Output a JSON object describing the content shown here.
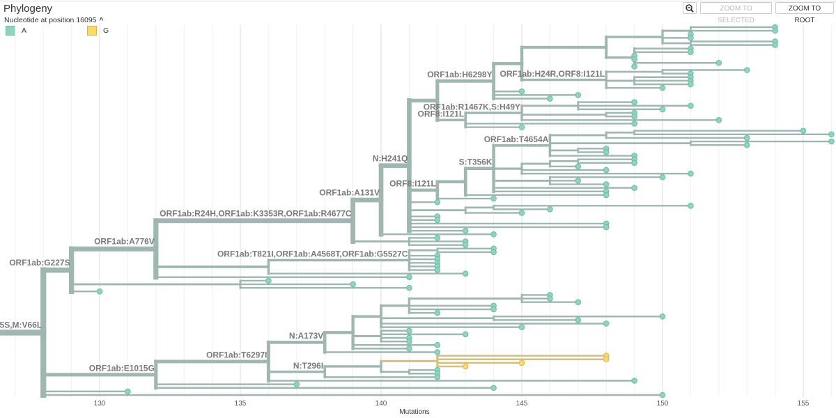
{
  "header": {
    "title": "Phylogeny",
    "color_by": "Nucleotide at position 16095",
    "zoom_icon": "magnifier-minus-icon",
    "zoom_to_selected": "ZOOM TO SELECTED",
    "zoom_to_root": "ZOOM TO ROOT"
  },
  "legend": [
    {
      "label": "A",
      "color": "#8fd3c1",
      "border": "#6fb9a7"
    },
    {
      "label": "G",
      "color": "#fcd96b",
      "border": "#d7b44a"
    }
  ],
  "colors": {
    "A_branch": "#9fb7b0",
    "G_branch": "#d3bf83",
    "A_tip": "#8fd3c1",
    "A_tip_stroke": "#6fb9a7",
    "G_tip": "#fcd96b",
    "G_tip_stroke": "#d7b44a"
  },
  "chart_data": {
    "type": "phylogeny",
    "xlabel": "Mutations",
    "xlim": [
      126.5,
      156.2
    ],
    "ticks": [
      130,
      135,
      140,
      145,
      150,
      155
    ],
    "tree": {
      "d": 128,
      "l": "5S,M:V66L",
      "c": [
        {
          "d": 129,
          "l": "ORF1ab:G227S",
          "c": [
            {
              "d": 132,
              "l": "ORF1ab:A776V",
              "c": [
                {
                  "d": 139,
                  "l": "ORF1ab:R24H,ORF1ab:K3353R,ORF1ab:R4677C",
                  "c": [
                    {
                      "d": 140,
                      "l": "ORF1ab:A131V",
                      "c": [
                        {
                          "d": 141,
                          "l": "N:H241Q",
                          "c": [
                            {
                              "d": 142,
                              "c": [
                                {
                                  "d": 144,
                                  "l": "ORF1ab:H6298Y",
                                  "c": [
                                    {
                                      "d": 145,
                                      "c": [
                                        {
                                          "d": 148,
                                          "c": [
                                            {
                                              "d": 150,
                                              "c": [
                                                {
                                                  "d": 151,
                                                  "c": [
                                                    154,
                                                    154,
                                                    151
                                                  ]
                                                },
                                                151,
                                                {
                                                  "d": 151,
                                                  "c": [
                                                    154,
                                                    154
                                                  ]
                                                }
                                              ]
                                            },
                                            {
                                              "d": 149,
                                              "c": [
                                                151,
                                                151,
                                                149,
                                                149,
                                                152,
                                                149
                                              ]
                                            }
                                          ]
                                        },
                                        {
                                          "d": 148,
                                          "l": "ORF1ab:H24R,ORF8:I121L",
                                          "c": [
                                            {
                                              "d": 150,
                                              "c": [
                                                153,
                                                151
                                              ]
                                            },
                                            {
                                              "d": 149,
                                              "c": [
                                                151,
                                                151,
                                                151
                                              ]
                                            },
                                            150
                                          ]
                                        }
                                      ]
                                    },
                                    145,
                                    147,
                                    146
                                  ]
                                },
                                {
                                  "d": 143,
                                  "l": "ORF8:I121L",
                                  "c": [
                                    {
                                      "d": 145,
                                      "l": "ORF1ab:R1467K,S:H49Y",
                                      "c": [
                                        {
                                          "d": 147,
                                          "c": [
                                            149,
                                            151,
                                            150
                                          ]
                                        },
                                        {
                                          "d": 148,
                                          "c": [
                                            149,
                                            149
                                          ]
                                        },
                                        152
                                      ]
                                    },
                                    149,
                                    145
                                  ]
                                }
                              ]
                            },
                            {
                              "d": 142,
                              "l": "ORF8:I121L",
                              "c": [
                                {
                                  "d": 143,
                                  "c": [
                                    {
                                      "d": 144,
                                      "l": "S:T356K",
                                      "c": [
                                        {
                                          "d": 146,
                                          "l": "ORF1ab:T4654A",
                                          "c": [
                                            {
                                              "d": 148,
                                              "c": [
                                                {
                                                  "d": 149,
                                                  "c": [
                                                    155,
                                                    156
                                                  ]
                                                },
                                                153
                                              ]
                                            },
                                            {
                                              "d": 151,
                                              "c": [
                                                156,
                                                153
                                              ]
                                            },
                                            {
                                              "d": 147,
                                              "c": [
                                                148,
                                                148
                                              ]
                                            },
                                            149
                                          ]
                                        },
                                        {
                                          "d": 145,
                                          "c": [
                                            {
                                              "d": 146,
                                              "c": [
                                                {
                                                  "d": 147,
                                                  "c": [
                                                    149,
                                                    149
                                                  ]
                                                },
                                                147
                                              ]
                                            },
                                            148,
                                            151
                                          ]
                                        },
                                        {
                                          "d": 146,
                                          "c": [
                                            150,
                                            147,
                                            148
                                          ]
                                        },
                                        149,
                                        148
                                      ]
                                    },
                                    148
                                  ]
                                },
                                144
                              ]
                            },
                            142,
                            {
                              "d": 143,
                              "c": [
                                {
                                  "d": 144,
                                  "c": [
                                    151,
                                    146
                                  ]
                                },
                                145
                              ]
                            },
                            142,
                            142,
                            148,
                            148,
                            143
                          ]
                        },
                        144
                      ]
                    },
                    {
                      "d": 141,
                      "c": [
                        142,
                        143,
                        143
                      ]
                    }
                  ]
                },
                {
                  "d": 136,
                  "c": [
                    {
                      "d": 141,
                      "l": "ORF1ab:T821I,ORF1ab:A4568T,ORF1ab:G5527C",
                      "c": [
                        {
                          "d": 142,
                          "c": [
                            144,
                            144
                          ]
                        },
                        142,
                        142,
                        142,
                        142,
                        142
                      ]
                    },
                    143
                  ]
                },
                141
              ]
            },
            {
              "d": 135,
              "c": [
                136,
                139,
                141
              ]
            },
            130
          ]
        },
        {
          "d": 132,
          "l": "ORF1ab:E1015G",
          "c": [
            {
              "d": 136,
              "l": "ORF1ab:T6297I",
              "c": [
                {
                  "d": 138,
                  "l": "N:A173V",
                  "c": [
                    {
                      "d": 139,
                      "c": [
                        {
                          "d": 140,
                          "c": [
                            {
                              "d": 141,
                              "c": [
                                {
                                  "d": 145,
                                  "c": [
                                    146,
                                    146,
                                    147
                                  ]
                                },
                                144,
                                144,
                                142
                              ]
                            },
                            {
                              "d": 144,
                              "c": [
                                150,
                                147
                              ]
                            },
                            148,
                            145
                          ]
                        },
                        {
                          "d": 140,
                          "c": [
                            141,
                            143,
                            141,
                            141
                          ]
                        },
                        142,
                        141
                      ]
                    },
                    142
                  ]
                },
                {
                  "d": 138,
                  "l": "N:T296I",
                  "c": [
                    {
                      "d": 140,
                      "c": [
                        {
                          "d": 142,
                          "nt": "G",
                          "c": [
                            {
                              "d": 148,
                              "nt": "G"
                            },
                            {
                              "d": 148,
                              "nt": "G"
                            },
                            {
                              "d": 145,
                              "nt": "G"
                            },
                            {
                              "d": 143,
                              "nt": "G"
                            }
                          ]
                        },
                        {
                          "d": 141,
                          "c": [
                            142,
                            142
                          ]
                        }
                      ]
                    },
                    142
                  ]
                },
                149
              ]
            },
            137,
            144
          ]
        },
        131,
        150
      ]
    }
  }
}
